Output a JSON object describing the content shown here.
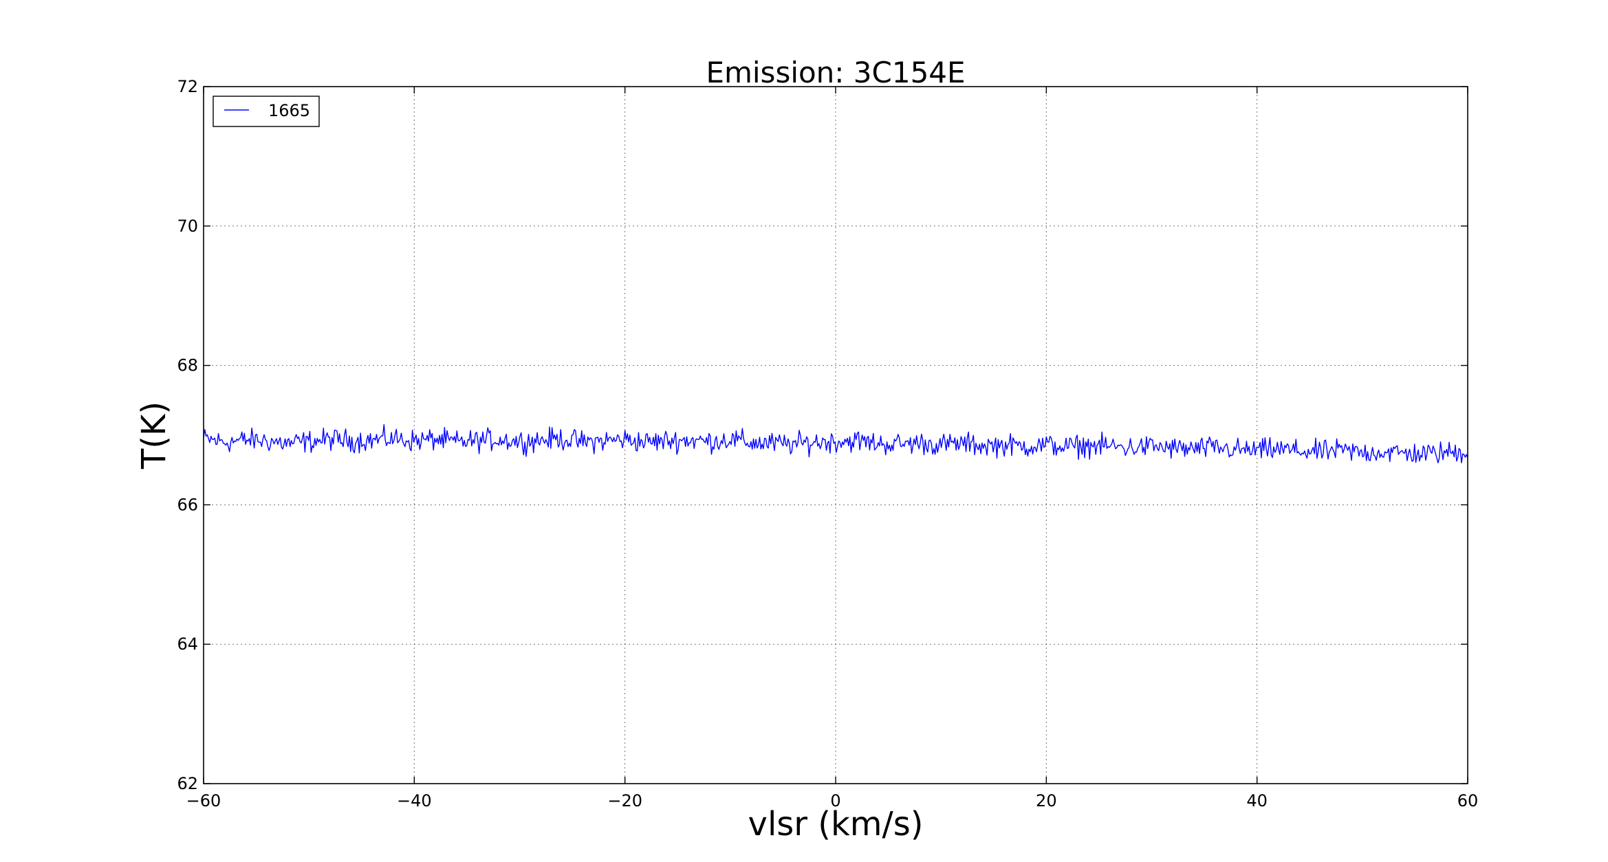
{
  "chart_data": {
    "type": "line",
    "title": "Emission: 3C154E",
    "xlabel": "vlsr (km/s)",
    "ylabel": "T(K)",
    "xlim": [
      -60,
      60
    ],
    "ylim": [
      62,
      72
    ],
    "xticks": [
      -60,
      -40,
      -20,
      0,
      20,
      40,
      60
    ],
    "xtick_labels": [
      "−60",
      "−40",
      "−20",
      "0",
      "20",
      "40",
      "60"
    ],
    "yticks": [
      62,
      64,
      66,
      68,
      70,
      72
    ],
    "ytick_labels": [
      "62",
      "64",
      "66",
      "68",
      "70",
      "72"
    ],
    "grid": true,
    "legend_position": "top-left",
    "series": [
      {
        "name": "1665",
        "color": "#0000ff",
        "x": [
          -60,
          -58,
          -56,
          -54,
          -52,
          -50,
          -48,
          -46,
          -44,
          -42,
          -40,
          -38,
          -36,
          -34,
          -32,
          -30,
          -28,
          -26,
          -24,
          -22,
          -20,
          -18,
          -16,
          -14,
          -12,
          -10,
          -8,
          -6,
          -4,
          -2,
          0,
          2,
          4,
          6,
          8,
          10,
          12,
          14,
          16,
          18,
          20,
          22,
          24,
          26,
          28,
          30,
          32,
          34,
          36,
          38,
          40,
          42,
          44,
          46,
          48,
          50,
          52,
          54,
          56,
          58,
          60
        ],
        "y": [
          66.95,
          66.9,
          66.93,
          66.92,
          66.88,
          66.91,
          66.94,
          66.92,
          66.93,
          66.95,
          66.92,
          66.94,
          66.9,
          66.92,
          66.94,
          66.91,
          66.93,
          66.95,
          66.9,
          66.92,
          66.94,
          66.9,
          66.92,
          66.93,
          66.91,
          66.94,
          66.89,
          66.88,
          66.87,
          66.9,
          66.91,
          66.92,
          66.88,
          66.87,
          66.89,
          66.86,
          66.88,
          66.85,
          66.86,
          66.84,
          66.86,
          66.83,
          66.85,
          66.84,
          66.82,
          66.84,
          66.81,
          66.8,
          66.82,
          66.79,
          66.78,
          66.8,
          66.77,
          66.76,
          66.78,
          66.75,
          66.76,
          66.74,
          66.73,
          66.75,
          66.76
        ],
        "noise_amplitude": 0.12
      }
    ]
  }
}
